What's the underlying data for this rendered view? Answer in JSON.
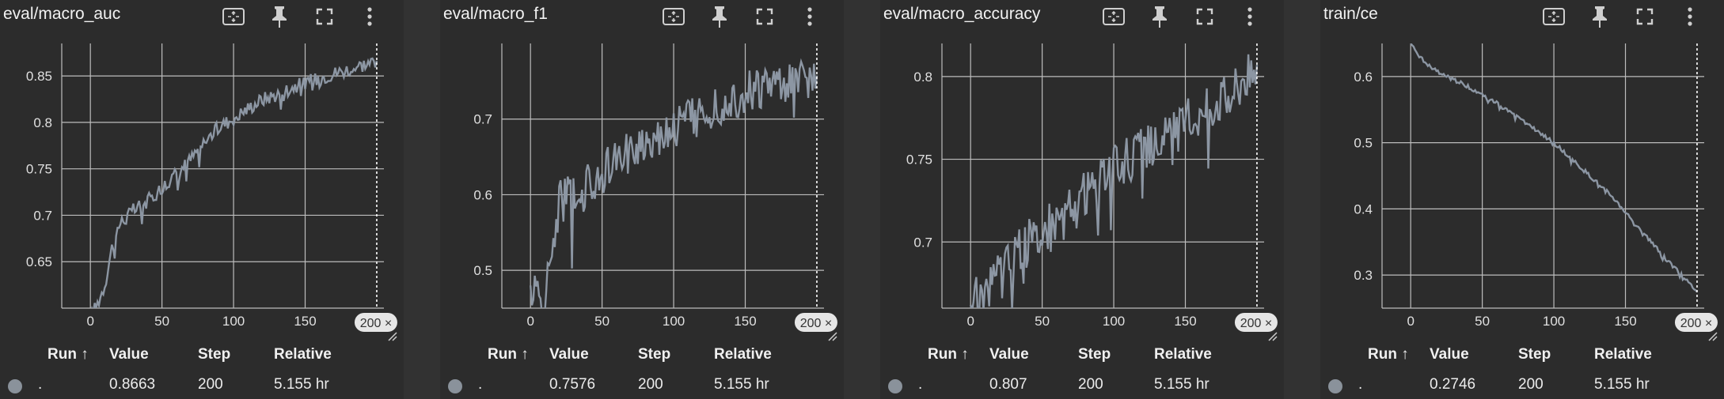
{
  "colors": {
    "line": "#8c96a3",
    "grid": "#bdbdbd",
    "background": "#2c2c2c",
    "text": "#e8e8e8"
  },
  "icons": [
    "fit-domain-icon",
    "pin-icon",
    "fullscreen-icon",
    "more-vert-icon"
  ],
  "table_headers": {
    "run": "Run ↑",
    "value": "Value",
    "step": "Step",
    "relative": "Relative"
  },
  "panels": [
    {
      "title": "eval/macro_auc",
      "cursor_label": "200 ×",
      "row": {
        "run": ".",
        "value": "0.8663",
        "step": "200",
        "relative": "5.155 hr"
      }
    },
    {
      "title": "eval/macro_f1",
      "cursor_label": "200 ×",
      "row": {
        "run": ".",
        "value": "0.7576",
        "step": "200",
        "relative": "5.155 hr"
      }
    },
    {
      "title": "eval/macro_accuracy",
      "cursor_label": "200 ×",
      "row": {
        "run": ".",
        "value": "0.807",
        "step": "200",
        "relative": "5.155 hr"
      }
    },
    {
      "title": "train/ce",
      "cursor_label": "200 ×",
      "row": {
        "run": ".",
        "value": "0.2746",
        "step": "200",
        "relative": "5.155 hr"
      }
    }
  ],
  "chart_data": [
    {
      "type": "line",
      "title": "eval/macro_auc",
      "xlim": [
        -20,
        205
      ],
      "ylim": [
        0.6,
        0.885
      ],
      "xticks": [
        0,
        50,
        100,
        150
      ],
      "yticks": [
        0.65,
        0.7,
        0.75,
        0.8,
        0.85
      ],
      "grid": true,
      "x_cursor": 200,
      "noise": 0.008,
      "anchors": [
        [
          0,
          0.59
        ],
        [
          5,
          0.605
        ],
        [
          10,
          0.625
        ],
        [
          15,
          0.665
        ],
        [
          20,
          0.69
        ],
        [
          30,
          0.705
        ],
        [
          40,
          0.715
        ],
        [
          50,
          0.73
        ],
        [
          60,
          0.745
        ],
        [
          70,
          0.76
        ],
        [
          80,
          0.78
        ],
        [
          90,
          0.795
        ],
        [
          100,
          0.805
        ],
        [
          110,
          0.815
        ],
        [
          120,
          0.825
        ],
        [
          130,
          0.83
        ],
        [
          140,
          0.838
        ],
        [
          150,
          0.842
        ],
        [
          160,
          0.848
        ],
        [
          170,
          0.853
        ],
        [
          180,
          0.857
        ],
        [
          190,
          0.862
        ],
        [
          200,
          0.8663
        ]
      ]
    },
    {
      "type": "line",
      "title": "eval/macro_f1",
      "xlim": [
        -20,
        205
      ],
      "ylim": [
        0.45,
        0.8
      ],
      "xticks": [
        0,
        50,
        100,
        150
      ],
      "yticks": [
        0.5,
        0.6,
        0.7
      ],
      "grid": true,
      "x_cursor": 200,
      "noise": 0.03,
      "anchors": [
        [
          0,
          0.48
        ],
        [
          10,
          0.45
        ],
        [
          15,
          0.53
        ],
        [
          20,
          0.59
        ],
        [
          30,
          0.6
        ],
        [
          40,
          0.61
        ],
        [
          50,
          0.63
        ],
        [
          60,
          0.64
        ],
        [
          70,
          0.66
        ],
        [
          80,
          0.67
        ],
        [
          90,
          0.68
        ],
        [
          100,
          0.69
        ],
        [
          110,
          0.7
        ],
        [
          120,
          0.71
        ],
        [
          130,
          0.72
        ],
        [
          140,
          0.725
        ],
        [
          150,
          0.735
        ],
        [
          160,
          0.74
        ],
        [
          170,
          0.745
        ],
        [
          180,
          0.75
        ],
        [
          190,
          0.755
        ],
        [
          200,
          0.7576
        ]
      ]
    },
    {
      "type": "line",
      "title": "eval/macro_accuracy",
      "xlim": [
        -20,
        205
      ],
      "ylim": [
        0.66,
        0.82
      ],
      "xticks": [
        0,
        50,
        100,
        150
      ],
      "yticks": [
        0.7,
        0.75,
        0.8
      ],
      "grid": true,
      "x_cursor": 200,
      "noise": 0.014,
      "anchors": [
        [
          0,
          0.662
        ],
        [
          10,
          0.67
        ],
        [
          20,
          0.685
        ],
        [
          30,
          0.69
        ],
        [
          40,
          0.7
        ],
        [
          50,
          0.705
        ],
        [
          60,
          0.715
        ],
        [
          70,
          0.72
        ],
        [
          80,
          0.73
        ],
        [
          90,
          0.735
        ],
        [
          100,
          0.745
        ],
        [
          110,
          0.75
        ],
        [
          120,
          0.755
        ],
        [
          130,
          0.76
        ],
        [
          140,
          0.765
        ],
        [
          150,
          0.772
        ],
        [
          160,
          0.778
        ],
        [
          170,
          0.785
        ],
        [
          180,
          0.79
        ],
        [
          190,
          0.8
        ],
        [
          200,
          0.807
        ]
      ]
    },
    {
      "type": "line",
      "title": "train/ce",
      "xlim": [
        -20,
        205
      ],
      "ylim": [
        0.25,
        0.65
      ],
      "xticks": [
        0,
        50,
        100,
        150
      ],
      "yticks": [
        0.3,
        0.4,
        0.5,
        0.6
      ],
      "grid": true,
      "x_cursor": 200,
      "noise": 0.003,
      "anchors": [
        [
          0,
          0.65
        ],
        [
          10,
          0.62
        ],
        [
          20,
          0.605
        ],
        [
          40,
          0.585
        ],
        [
          60,
          0.56
        ],
        [
          80,
          0.53
        ],
        [
          100,
          0.5
        ],
        [
          120,
          0.46
        ],
        [
          140,
          0.42
        ],
        [
          160,
          0.37
        ],
        [
          180,
          0.32
        ],
        [
          190,
          0.3
        ],
        [
          200,
          0.2746
        ]
      ]
    }
  ]
}
